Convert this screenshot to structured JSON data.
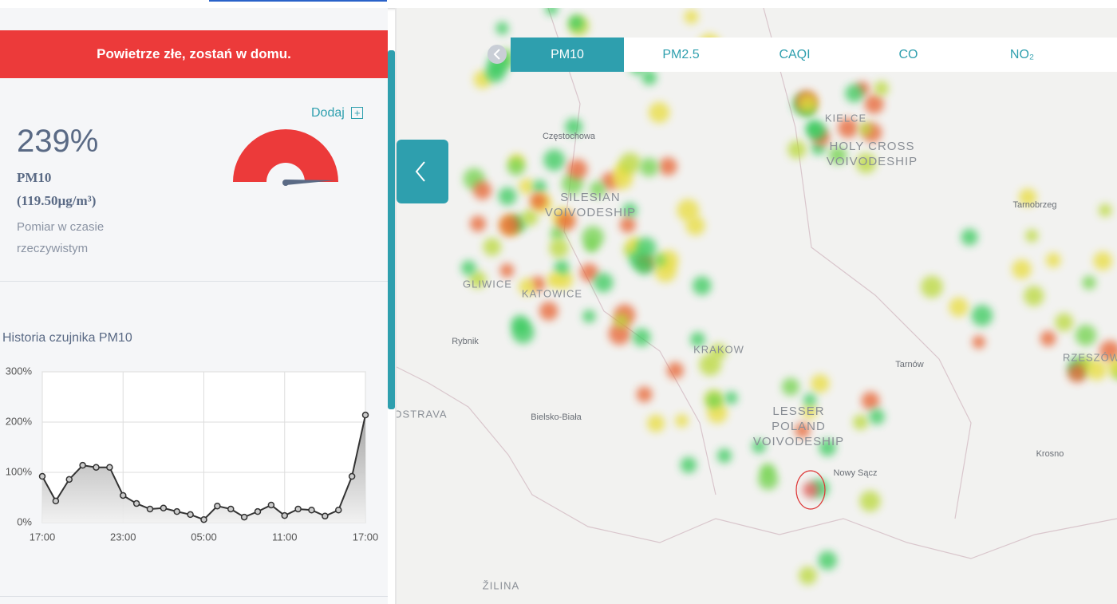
{
  "alert": "Powietrze złe, zostań w domu.",
  "sensor": {
    "add": "Dodaj",
    "percent": "239%",
    "pollutant": "PM10",
    "concentration": "(119.50µg/m³)",
    "note": "Pomiar w czasie rzeczywistym"
  },
  "chart_data": {
    "type": "line",
    "title": "Historia czujnika PM10",
    "categories": [
      "17:00",
      null,
      null,
      null,
      null,
      null,
      "23:00",
      null,
      null,
      null,
      null,
      null,
      "05:00",
      null,
      null,
      null,
      null,
      null,
      "11:00",
      null,
      null,
      null,
      null,
      null,
      "17:00"
    ],
    "values": [
      92,
      43,
      86,
      114,
      110,
      110,
      54,
      38,
      27,
      29,
      22,
      16,
      6,
      33,
      27,
      11,
      22,
      35,
      14,
      27,
      25,
      13,
      25,
      92,
      214
    ],
    "color": "#333333",
    "ylim": [
      0,
      300
    ],
    "yticks": [
      {
        "value": 0,
        "label": "0%"
      },
      {
        "value": 100,
        "label": "100%"
      },
      {
        "value": 200,
        "label": "200%"
      },
      {
        "value": 300,
        "label": "300%"
      }
    ],
    "grid": true
  },
  "tabs": [
    "PM10",
    "PM2.5",
    "CAQI",
    "CO",
    "NO₂"
  ],
  "map": {
    "labels": [
      {
        "lines": [
          "Częstochowa"
        ]
      },
      {
        "lines": [
          "SILESIAN",
          "VOIVODESHIP"
        ]
      },
      {
        "lines": [
          "GLIWICE"
        ]
      },
      {
        "lines": [
          "KATOWICE"
        ]
      },
      {
        "lines": [
          "Rybnik"
        ]
      },
      {
        "lines": [
          "OSTRAVA"
        ]
      },
      {
        "lines": [
          "Bielsko-Biała"
        ]
      },
      {
        "lines": [
          "KRAKOW"
        ]
      },
      {
        "lines": [
          "LESSER",
          "POLAND",
          "VOIVODESHIP"
        ]
      },
      {
        "lines": [
          "Nowy Sącz"
        ]
      },
      {
        "lines": [
          "ŽILINA"
        ]
      },
      {
        "lines": [
          "KIELCE"
        ]
      },
      {
        "lines": [
          "HOLY CROSS",
          "VOIVODESHIP"
        ]
      },
      {
        "lines": [
          "Tarnobrzeg"
        ]
      },
      {
        "lines": [
          "Tarnów"
        ]
      },
      {
        "lines": [
          "RZESZÓW"
        ]
      },
      {
        "lines": [
          "Krosno"
        ]
      }
    ]
  }
}
